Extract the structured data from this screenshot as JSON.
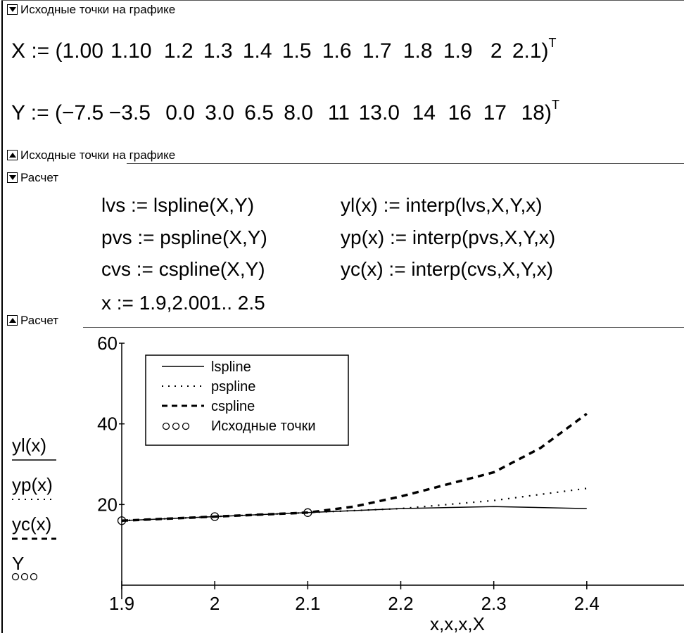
{
  "region1": {
    "label": "Исходные точки на графике"
  },
  "x_vector": {
    "name": "X",
    "assign": ":=",
    "values": [
      "1.00",
      "1.10",
      "1.2",
      "1.3",
      "1.4",
      "1.5",
      "1.6",
      "1.7",
      "1.8",
      "1.9",
      "2",
      "2.1"
    ],
    "transpose": "T"
  },
  "y_vector": {
    "name": "Y",
    "assign": ":=",
    "values": [
      "−7.5",
      "−3.5",
      "0.0",
      "3.0",
      "6.5",
      "8.0",
      "11",
      "13.0",
      "14",
      "16",
      "17",
      "18"
    ],
    "transpose": "T"
  },
  "region2": {
    "label": "Расчет"
  },
  "formulas": {
    "lvs": "lvs := lspline(X,Y)",
    "pvs": "pvs := pspline(X,Y)",
    "cvs": "cvs := cspline(X,Y)",
    "yl": "yl(x) := interp(lvs,X,Y,x)",
    "yp": "yp(x) := interp(pvs,X,Y,x)",
    "yc": "yc(x) := interp(cvs,X,Y,x)",
    "range": "x := 1.9,2.001.. 2.5"
  },
  "chart_data": {
    "type": "line",
    "xlabel": "x,x,x,X",
    "ylabel_items": [
      "yl(x)",
      "yp(x)",
      "yc(x)",
      "Y"
    ],
    "xlim": [
      1.9,
      2.5
    ],
    "ylim": [
      0,
      60
    ],
    "x_ticks": [
      "1.9",
      "2",
      "2.1",
      "2.2",
      "2.3",
      "2.4"
    ],
    "x_tick_values": [
      1.9,
      2.0,
      2.1,
      2.2,
      2.3,
      2.4
    ],
    "y_ticks": [
      "20",
      "40",
      "60"
    ],
    "y_tick_values": [
      20,
      40,
      60
    ],
    "grid": false,
    "legend": {
      "placement": "top-left",
      "entries": [
        "lspline",
        "pspline",
        "cspline",
        "Исходные точки"
      ]
    },
    "series": [
      {
        "name": "lspline",
        "style": "solid",
        "x": [
          1.9,
          2.0,
          2.1,
          2.2,
          2.3,
          2.4
        ],
        "y": [
          16,
          17,
          18,
          19,
          19.5,
          19
        ]
      },
      {
        "name": "pspline",
        "style": "dotted",
        "x": [
          1.9,
          2.0,
          2.1,
          2.2,
          2.3,
          2.4
        ],
        "y": [
          16,
          17,
          18,
          19,
          21,
          24
        ]
      },
      {
        "name": "cspline",
        "style": "dashed",
        "x": [
          1.9,
          2.0,
          2.1,
          2.15,
          2.2,
          2.25,
          2.3,
          2.35,
          2.4
        ],
        "y": [
          16,
          17,
          18,
          19.5,
          22,
          25,
          28,
          34,
          42.5
        ]
      },
      {
        "name": "Исходные точки",
        "style": "markers",
        "x": [
          1.9,
          2.0,
          2.1
        ],
        "y": [
          16,
          17,
          18
        ]
      }
    ]
  }
}
